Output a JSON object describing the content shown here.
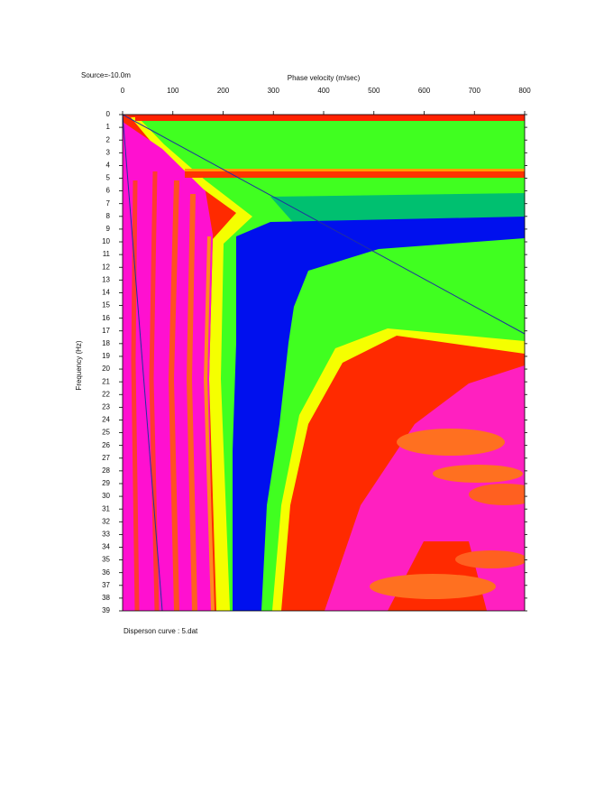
{
  "chart_data": {
    "type": "heatmap",
    "title": "Source=-10.0m",
    "xlabel": "Phase velocity (m/sec)",
    "ylabel": "Frequency (Hz)",
    "footnote": "Disperson curve : 5.dat",
    "xlim": [
      0,
      800
    ],
    "xticks": [
      0,
      100,
      200,
      300,
      400,
      500,
      600,
      700,
      800
    ],
    "ylim": [
      0,
      39
    ],
    "yticks": [
      0,
      1,
      2,
      3,
      4,
      5,
      6,
      7,
      8,
      9,
      10,
      11,
      12,
      13,
      14,
      15,
      16,
      17,
      18,
      19,
      20,
      21,
      22,
      23,
      24,
      25,
      26,
      27,
      28,
      29,
      30,
      31,
      32,
      33,
      34,
      35,
      36,
      37,
      38,
      39
    ],
    "y_inverted": true
  }
}
